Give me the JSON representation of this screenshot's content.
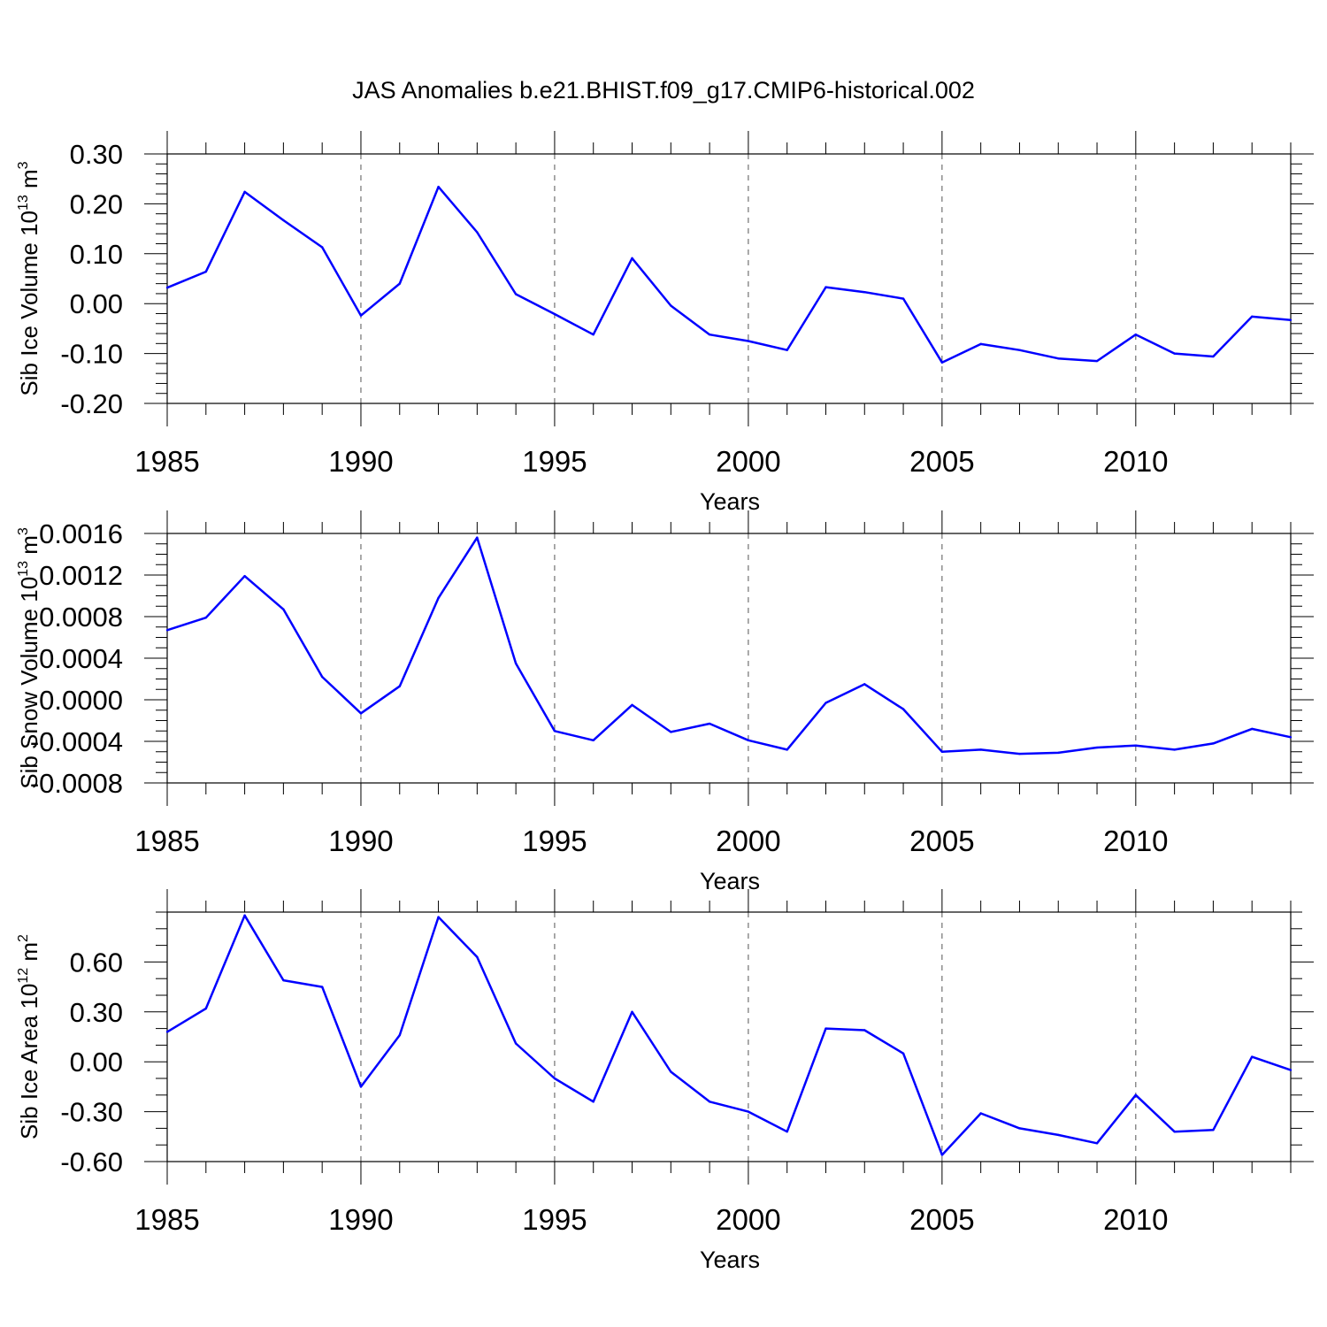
{
  "title": "JAS Anomalies b.e21.BHIST.f09_g17.CMIP6-historical.002",
  "chart_data": [
    {
      "type": "line",
      "ylabel": "Sib Ice Volume 10",
      "ylabel_exp": "13",
      "ylabel_unit": " m",
      "ylabel_unit_exp": "3",
      "xlabel": "Years",
      "xlim": [
        1985,
        2014
      ],
      "ylim": [
        -0.2,
        0.3
      ],
      "yticks": [
        -0.2,
        -0.1,
        0.0,
        0.1,
        0.2,
        0.3
      ],
      "ytick_labels": [
        "-0.20",
        "-0.10",
        "0.00",
        "0.10",
        "0.20",
        "0.30"
      ],
      "yminor_step": 0.02,
      "xticks": [
        1985,
        1990,
        1995,
        2000,
        2005,
        2010
      ],
      "xtick_labels": [
        "1985",
        "1990",
        "1995",
        "2000",
        "2005",
        "2010"
      ],
      "grid_x": [
        1990,
        1995,
        2000,
        2005,
        2010
      ],
      "color": "#0000ff",
      "series": [
        {
          "name": "Sib Ice Volume",
          "x": [
            1985,
            1986,
            1987,
            1988,
            1989,
            1990,
            1991,
            1992,
            1993,
            1994,
            1995,
            1996,
            1997,
            1998,
            1999,
            2000,
            2001,
            2002,
            2003,
            2004,
            2005,
            2006,
            2007,
            2008,
            2009,
            2010,
            2011,
            2012,
            2013,
            2014
          ],
          "values": [
            0.032,
            0.064,
            0.224,
            0.167,
            0.113,
            -0.024,
            0.04,
            0.234,
            0.143,
            0.019,
            -0.021,
            -0.062,
            0.091,
            -0.004,
            -0.062,
            -0.075,
            -0.093,
            0.033,
            0.023,
            0.01,
            -0.118,
            -0.081,
            -0.093,
            -0.11,
            -0.115,
            -0.062,
            -0.1,
            -0.106,
            -0.026,
            -0.033
          ]
        }
      ]
    },
    {
      "type": "line",
      "ylabel": "Sib Snow Volume 10",
      "ylabel_exp": "13",
      "ylabel_unit": " m",
      "ylabel_unit_exp": "3",
      "xlabel": "Years",
      "xlim": [
        1985,
        2014
      ],
      "ylim": [
        -0.0008,
        0.0016
      ],
      "yticks": [
        -0.0008,
        -0.0004,
        0.0,
        0.0004,
        0.0008,
        0.0012,
        0.0016
      ],
      "ytick_labels": [
        "-0.0008",
        "-0.0004",
        "0.0000",
        "0.0004",
        "0.0008",
        "0.0012",
        "0.0016"
      ],
      "yminor_step": 0.0001,
      "xticks": [
        1985,
        1990,
        1995,
        2000,
        2005,
        2010
      ],
      "xtick_labels": [
        "1985",
        "1990",
        "1995",
        "2000",
        "2005",
        "2010"
      ],
      "grid_x": [
        1990,
        1995,
        2000,
        2005,
        2010
      ],
      "color": "#0000ff",
      "series": [
        {
          "name": "Sib Snow Volume",
          "x": [
            1985,
            1986,
            1987,
            1988,
            1989,
            1990,
            1991,
            1992,
            1993,
            1994,
            1995,
            1996,
            1997,
            1998,
            1999,
            2000,
            2001,
            2002,
            2003,
            2004,
            2005,
            2006,
            2007,
            2008,
            2009,
            2010,
            2011,
            2012,
            2013,
            2014
          ],
          "values": [
            0.00067,
            0.00079,
            0.00119,
            0.00087,
            0.00022,
            -0.00013,
            0.00013,
            0.00098,
            0.00156,
            0.00035,
            -0.0003,
            -0.00039,
            -5e-05,
            -0.00031,
            -0.00023,
            -0.00039,
            -0.00048,
            -3e-05,
            0.00015,
            -9e-05,
            -0.0005,
            -0.00048,
            -0.00052,
            -0.00051,
            -0.00046,
            -0.00044,
            -0.00048,
            -0.00042,
            -0.00028,
            -0.00036
          ]
        }
      ]
    },
    {
      "type": "line",
      "ylabel": "Sib Ice Area 10",
      "ylabel_exp": "12",
      "ylabel_unit": " m",
      "ylabel_unit_exp": "2",
      "xlabel": "Years",
      "xlim": [
        1985,
        2014
      ],
      "ylim": [
        -0.6,
        0.9
      ],
      "yticks": [
        -0.6,
        -0.3,
        0.0,
        0.3,
        0.6
      ],
      "ytick_labels": [
        "-0.60",
        "-0.30",
        "0.00",
        "0.30",
        "0.60"
      ],
      "yminor_step": 0.1,
      "xticks": [
        1985,
        1990,
        1995,
        2000,
        2005,
        2010
      ],
      "xtick_labels": [
        "1985",
        "1990",
        "1995",
        "2000",
        "2005",
        "2010"
      ],
      "grid_x": [
        1990,
        1995,
        2000,
        2005,
        2010
      ],
      "color": "#0000ff",
      "series": [
        {
          "name": "Sib Ice Area",
          "x": [
            1985,
            1986,
            1987,
            1988,
            1989,
            1990,
            1991,
            1992,
            1993,
            1994,
            1995,
            1996,
            1997,
            1998,
            1999,
            2000,
            2001,
            2002,
            2003,
            2004,
            2005,
            2006,
            2007,
            2008,
            2009,
            2010,
            2011,
            2012,
            2013,
            2014
          ],
          "values": [
            0.18,
            0.32,
            0.88,
            0.49,
            0.45,
            -0.15,
            0.16,
            0.87,
            0.63,
            0.11,
            -0.1,
            -0.24,
            0.3,
            -0.06,
            -0.24,
            -0.3,
            -0.42,
            0.2,
            0.19,
            0.05,
            -0.56,
            -0.31,
            -0.4,
            -0.44,
            -0.49,
            -0.2,
            -0.42,
            -0.41,
            0.03,
            -0.05
          ]
        }
      ]
    }
  ]
}
